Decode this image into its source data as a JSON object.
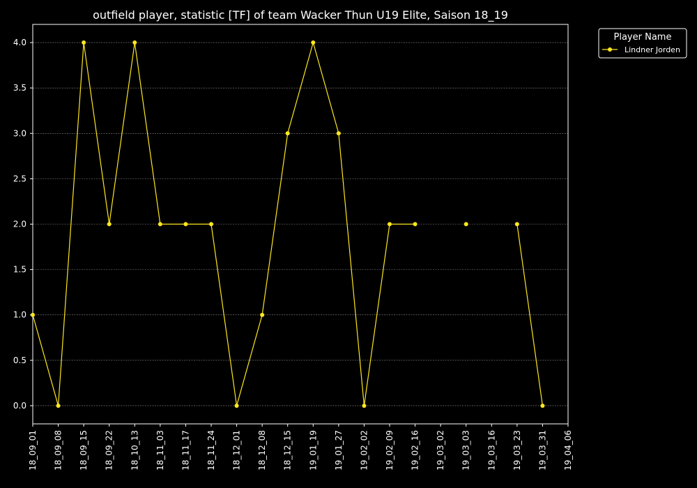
{
  "chart_data": {
    "type": "line",
    "title": "outfield player, statistic [TF] of team Wacker Thun U19 Elite, Saison 18_19",
    "xlabel": "",
    "ylabel": "",
    "ylim": [
      -0.2,
      4.2
    ],
    "y_ticks": [
      0.0,
      0.5,
      1.0,
      1.5,
      2.0,
      2.5,
      3.0,
      3.5,
      4.0
    ],
    "y_tick_labels": [
      "0.0",
      "0.5",
      "1.0",
      "1.5",
      "2.0",
      "2.5",
      "3.0",
      "3.5",
      "4.0"
    ],
    "grid": true,
    "legend_title": "Player Name",
    "legend_position": "outside-top-right",
    "categories": [
      "18_09_01",
      "18_09_08",
      "18_09_15",
      "18_09_22",
      "18_10_13",
      "18_11_03",
      "18_11_17",
      "18_11_24",
      "18_12_01",
      "18_12_08",
      "18_12_15",
      "19_01_19",
      "19_01_27",
      "19_02_02",
      "19_02_09",
      "19_02_16",
      "19_03_02",
      "19_03_03",
      "19_03_16",
      "19_03_23",
      "19_03_31",
      "19_04_06"
    ],
    "series": [
      {
        "name": "Lindner Jorden",
        "color": "#ffe81f",
        "values": [
          1,
          0,
          4,
          2,
          4,
          2,
          2,
          2,
          0,
          1,
          3,
          4,
          3,
          0,
          2,
          2,
          null,
          2,
          null,
          2,
          0,
          null
        ]
      }
    ]
  },
  "colors": {
    "background": "#000000",
    "foreground": "#ffffff",
    "grid": "#888888",
    "series": "#ffe81f"
  }
}
